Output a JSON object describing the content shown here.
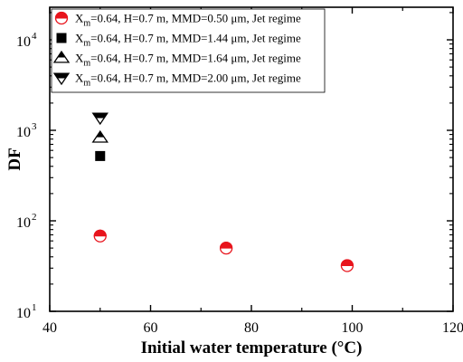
{
  "chart_data": {
    "type": "scatter",
    "xlabel": "Initial water temperature (°C)",
    "ylabel": "DF",
    "xlim": [
      40,
      120
    ],
    "ylim": [
      10,
      30000
    ],
    "yscale": "log",
    "xticks": [
      "40",
      "60",
      "80",
      "100",
      "120"
    ],
    "yticks": [
      {
        "value": 10,
        "base": "10",
        "exp": "1"
      },
      {
        "value": 100,
        "base": "10",
        "exp": "2"
      },
      {
        "value": 1000,
        "base": "10",
        "exp": "3"
      },
      {
        "value": 10000,
        "base": "10",
        "exp": "4"
      }
    ],
    "grid": false,
    "legend_position": "top-left",
    "series": [
      {
        "legend": {
          "x_base": "X",
          "x_sub": "m",
          "rest": "=0.64, H=0.7 m, MMD=0.50 μm, Jet regime"
        },
        "marker": "half-filled-circle",
        "color": "#e8141c",
        "points": [
          {
            "x": 50,
            "y": 68
          },
          {
            "x": 75,
            "y": 50
          },
          {
            "x": 99,
            "y": 32
          }
        ]
      },
      {
        "legend": {
          "x_base": "X",
          "x_sub": "m",
          "rest": "=0.64, H=0.7 m,  MMD=1.44 μm, Jet regime"
        },
        "marker": "filled-square",
        "color": "#000000",
        "points": [
          {
            "x": 50,
            "y": 520
          }
        ]
      },
      {
        "legend": {
          "x_base": "X",
          "x_sub": "m",
          "rest": "=0.64, H=0.7 m,  MMD=1.64 μm, Jet regime"
        },
        "marker": "half-filled-triangle-up",
        "color": "#000000",
        "points": [
          {
            "x": 50,
            "y": 830
          }
        ]
      },
      {
        "legend": {
          "x_base": "X",
          "x_sub": "m",
          "rest": "=0.64, H=0.7 m,  MMD=2.00 μm, Jet regime"
        },
        "marker": "half-filled-triangle-down",
        "color": "#000000",
        "points": [
          {
            "x": 50,
            "y": 1380
          }
        ]
      }
    ]
  }
}
